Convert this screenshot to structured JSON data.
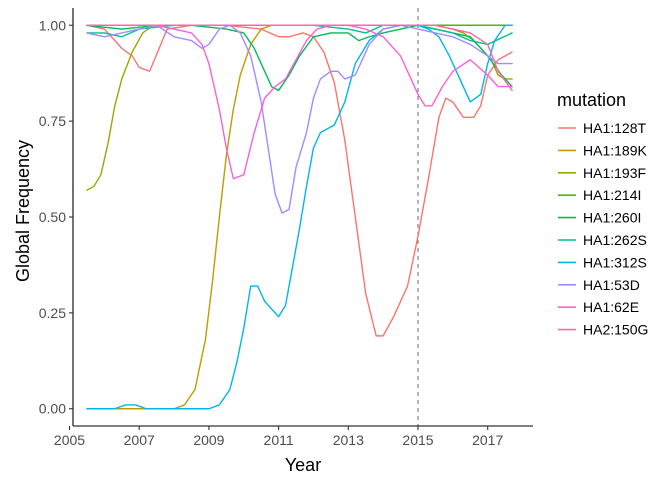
{
  "chart_data": {
    "type": "line",
    "xlabel": "Year",
    "ylabel": "Global Frequency",
    "xlim": [
      2005.1,
      2018.3
    ],
    "ylim": [
      -0.045,
      1.045
    ],
    "xticks": [
      2005,
      2007,
      2009,
      2011,
      2013,
      2015,
      2017
    ],
    "yticks": [
      0.0,
      0.25,
      0.5,
      0.75,
      1.0
    ],
    "ytick_labels": [
      "0.00",
      "0.25",
      "0.50",
      "0.75",
      "1.00"
    ],
    "reference_line": {
      "x": 2015.0,
      "style": "dashed",
      "color": "#777777"
    },
    "legend_title": "mutation",
    "legend_position": "right",
    "grid": false,
    "series": [
      {
        "name": "HA1:128T",
        "color": "#F8766D",
        "x": [
          2005.5,
          2006.0,
          2006.5,
          2006.8,
          2007.0,
          2007.3,
          2007.8,
          2008.5,
          2009.5,
          2010.5,
          2011.0,
          2011.3,
          2011.7,
          2012.0,
          2012.3,
          2012.6,
          2012.9,
          2013.2,
          2013.5,
          2013.8,
          2014.0,
          2014.3,
          2014.7,
          2015.0,
          2015.3,
          2015.6,
          2015.8,
          2016.0,
          2016.3,
          2016.6,
          2016.8,
          2017.0,
          2017.3,
          2017.7
        ],
        "y": [
          1.0,
          0.99,
          0.94,
          0.92,
          0.89,
          0.88,
          0.99,
          1.0,
          1.0,
          0.99,
          0.97,
          0.97,
          0.98,
          0.97,
          0.93,
          0.85,
          0.7,
          0.5,
          0.3,
          0.19,
          0.19,
          0.24,
          0.32,
          0.45,
          0.6,
          0.76,
          0.81,
          0.8,
          0.76,
          0.76,
          0.79,
          0.87,
          0.91,
          0.93
        ]
      },
      {
        "name": "HA1:189K",
        "color": "#C49A00",
        "x": [
          2005.5,
          2007.0,
          2007.5,
          2008.0,
          2008.3,
          2008.6,
          2008.9,
          2009.1,
          2009.3,
          2009.5,
          2009.7,
          2009.9,
          2010.2,
          2010.5,
          2010.8,
          2011.0,
          2011.5,
          2012.0,
          2013.0,
          2014.0,
          2015.0,
          2016.0,
          2017.0,
          2017.7
        ],
        "y": [
          0.0,
          0.0,
          0.0,
          0.0,
          0.01,
          0.05,
          0.18,
          0.33,
          0.5,
          0.66,
          0.78,
          0.87,
          0.95,
          0.99,
          1.0,
          1.0,
          1.0,
          1.0,
          1.0,
          1.0,
          1.0,
          1.0,
          1.0,
          1.0
        ]
      },
      {
        "name": "HA1:193F",
        "color": "#99A800",
        "x": [
          2005.5,
          2005.7,
          2005.9,
          2006.1,
          2006.3,
          2006.5,
          2006.8,
          2007.1,
          2007.4,
          2007.8,
          2008.5,
          2009.5,
          2010.5,
          2011.5,
          2012.5,
          2013.5,
          2014.5,
          2015.0,
          2015.5,
          2016.0,
          2016.3,
          2016.6,
          2016.9,
          2017.1,
          2017.3,
          2017.5,
          2017.7
        ],
        "y": [
          0.57,
          0.58,
          0.61,
          0.69,
          0.79,
          0.86,
          0.93,
          0.98,
          1.0,
          1.0,
          1.0,
          1.0,
          1.0,
          1.0,
          1.0,
          1.0,
          1.0,
          1.0,
          1.0,
          0.99,
          0.98,
          0.96,
          0.93,
          0.91,
          0.87,
          0.86,
          0.86
        ]
      },
      {
        "name": "HA1:214I",
        "color": "#53B400",
        "x": [
          2005.5,
          2006.5,
          2007.5,
          2008.5,
          2009.5,
          2010.5,
          2011.5,
          2012.5,
          2013.5,
          2014.0,
          2015.0,
          2016.0,
          2016.5,
          2017.0,
          2017.7
        ],
        "y": [
          1.0,
          1.0,
          1.0,
          1.0,
          1.0,
          1.0,
          1.0,
          1.0,
          1.0,
          1.0,
          1.0,
          1.0,
          1.0,
          1.0,
          1.0
        ]
      },
      {
        "name": "HA1:260I",
        "color": "#00BC56",
        "x": [
          2005.5,
          2006.5,
          2007.5,
          2008.5,
          2009.5,
          2010.0,
          2010.3,
          2010.6,
          2010.8,
          2011.0,
          2011.3,
          2011.6,
          2012.0,
          2012.5,
          2013.0,
          2013.3,
          2013.6,
          2014.0,
          2014.5,
          2015.0,
          2015.5,
          2016.0,
          2016.5,
          2017.0,
          2017.4,
          2017.7
        ],
        "y": [
          1.0,
          0.99,
          1.0,
          1.0,
          0.99,
          0.98,
          0.94,
          0.88,
          0.84,
          0.83,
          0.87,
          0.92,
          0.97,
          0.98,
          0.98,
          0.96,
          0.97,
          0.98,
          0.99,
          1.0,
          0.99,
          0.98,
          0.97,
          0.92,
          0.87,
          0.84
        ]
      },
      {
        "name": "HA1:262S",
        "color": "#00C094",
        "x": [
          2005.5,
          2006.0,
          2006.5,
          2007.0,
          2008.0,
          2009.0,
          2010.0,
          2011.0,
          2012.0,
          2013.0,
          2013.5,
          2014.0,
          2015.0,
          2016.0,
          2016.5,
          2017.0,
          2017.7
        ],
        "y": [
          0.98,
          0.98,
          0.97,
          0.99,
          1.0,
          1.0,
          1.0,
          1.0,
          1.0,
          0.99,
          0.98,
          1.0,
          1.0,
          0.98,
          0.96,
          0.95,
          0.98
        ]
      },
      {
        "name": "HA1:312S",
        "color": "#00B6EB",
        "x": [
          2005.5,
          2006.3,
          2006.6,
          2006.9,
          2007.2,
          2009.0,
          2009.3,
          2009.6,
          2009.8,
          2010.0,
          2010.2,
          2010.4,
          2010.6,
          2010.8,
          2011.0,
          2011.2,
          2011.4,
          2011.6,
          2011.8,
          2012.0,
          2012.2,
          2012.4,
          2012.6,
          2012.9,
          2013.2,
          2013.6,
          2014.0,
          2014.5,
          2015.0,
          2015.3,
          2015.6,
          2015.9,
          2016.2,
          2016.5,
          2016.8,
          2017.0,
          2017.2,
          2017.5,
          2017.7
        ],
        "y": [
          0.0,
          0.0,
          0.01,
          0.01,
          0.0,
          0.0,
          0.01,
          0.05,
          0.12,
          0.21,
          0.32,
          0.32,
          0.28,
          0.26,
          0.24,
          0.27,
          0.37,
          0.47,
          0.58,
          0.68,
          0.72,
          0.73,
          0.74,
          0.8,
          0.9,
          0.96,
          0.99,
          1.0,
          1.0,
          0.99,
          0.97,
          0.92,
          0.86,
          0.8,
          0.82,
          0.9,
          0.96,
          1.0,
          1.0
        ]
      },
      {
        "name": "HA1:53D",
        "color": "#A58AFF",
        "x": [
          2005.5,
          2006.0,
          2007.0,
          2007.5,
          2008.0,
          2008.5,
          2008.8,
          2009.0,
          2009.3,
          2009.6,
          2009.9,
          2010.2,
          2010.5,
          2010.7,
          2010.9,
          2011.1,
          2011.3,
          2011.5,
          2011.8,
          2012.0,
          2012.2,
          2012.5,
          2012.7,
          2012.9,
          2013.2,
          2013.6,
          2014.0,
          2014.5,
          2015.0,
          2015.5,
          2016.0,
          2016.5,
          2017.0,
          2017.3,
          2017.7
        ],
        "y": [
          0.98,
          0.97,
          0.99,
          1.0,
          0.97,
          0.96,
          0.94,
          0.95,
          0.99,
          1.0,
          0.98,
          0.92,
          0.8,
          0.68,
          0.56,
          0.51,
          0.52,
          0.63,
          0.72,
          0.81,
          0.86,
          0.88,
          0.88,
          0.86,
          0.87,
          0.95,
          0.99,
          1.0,
          0.99,
          0.98,
          0.97,
          0.95,
          0.92,
          0.9,
          0.9
        ]
      },
      {
        "name": "HA1:62E",
        "color": "#FB61D7",
        "x": [
          2005.5,
          2006.5,
          2007.5,
          2008.0,
          2008.5,
          2008.8,
          2009.0,
          2009.3,
          2009.5,
          2009.7,
          2010.0,
          2010.3,
          2010.6,
          2010.9,
          2011.2,
          2011.5,
          2011.8,
          2012.1,
          2012.5,
          2013.0,
          2013.5,
          2014.0,
          2014.5,
          2015.0,
          2015.2,
          2015.4,
          2015.7,
          2016.0,
          2016.5,
          2017.0,
          2017.3,
          2017.7
        ],
        "y": [
          1.0,
          1.0,
          1.0,
          0.99,
          0.98,
          0.95,
          0.9,
          0.78,
          0.68,
          0.6,
          0.61,
          0.72,
          0.81,
          0.84,
          0.86,
          0.91,
          0.96,
          0.99,
          1.0,
          1.0,
          0.99,
          0.97,
          0.92,
          0.82,
          0.79,
          0.79,
          0.84,
          0.88,
          0.91,
          0.87,
          0.84,
          0.84
        ]
      },
      {
        "name": "HA2:150G",
        "color": "#FF67A4",
        "x": [
          2005.5,
          2006.5,
          2007.5,
          2008.5,
          2009.5,
          2010.5,
          2011.5,
          2012.5,
          2013.5,
          2014.5,
          2015.0,
          2015.5,
          2016.0,
          2016.5,
          2017.0,
          2017.3,
          2017.7
        ],
        "y": [
          1.0,
          1.0,
          1.0,
          1.0,
          1.0,
          1.0,
          1.0,
          1.0,
          1.0,
          1.0,
          1.0,
          1.0,
          0.99,
          0.98,
          0.95,
          0.88,
          0.83
        ]
      }
    ]
  }
}
